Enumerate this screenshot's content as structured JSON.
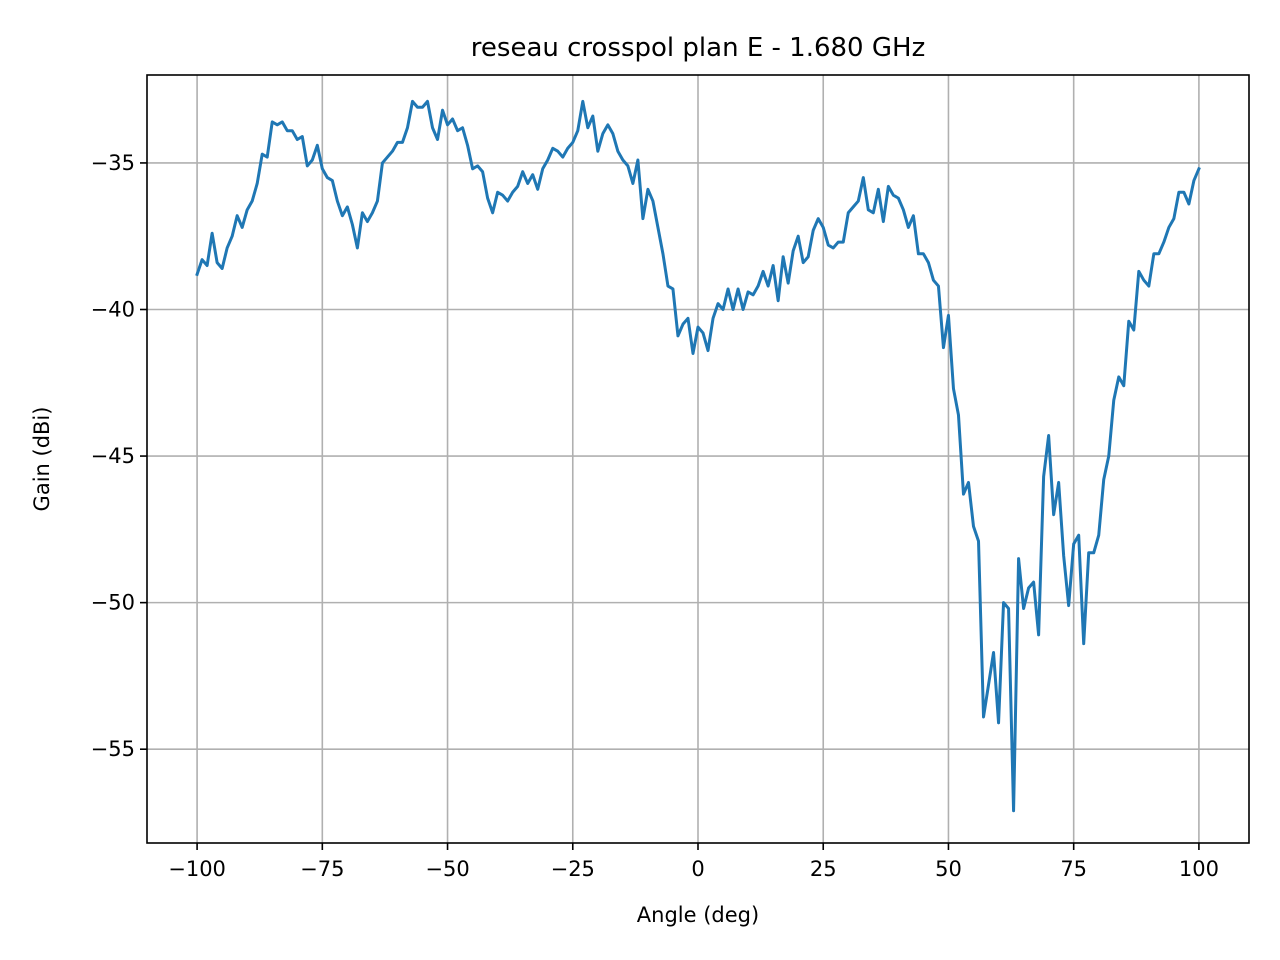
{
  "chart_data": {
    "type": "line",
    "title": "reseau crosspol plan E - 1.680 GHz",
    "xlabel": "Angle (deg)",
    "ylabel": "Gain (dBi)",
    "xlim": [
      -110,
      110
    ],
    "ylim": [
      -58.2,
      -32.0
    ],
    "xticks": [
      -100,
      -75,
      -50,
      -25,
      0,
      25,
      50,
      75,
      100
    ],
    "xtick_labels": [
      "−100",
      "−75",
      "−50",
      "−25",
      "0",
      "25",
      "50",
      "75",
      "100"
    ],
    "yticks": [
      -35,
      -40,
      -45,
      -50,
      -55
    ],
    "ytick_labels": [
      "−35",
      "−40",
      "−45",
      "−50",
      "−55"
    ],
    "grid": true,
    "legend": null,
    "series": [
      {
        "color": "#1f77b4",
        "x": [
          -100,
          -99,
          -98,
          -97,
          -96,
          -95,
          -94,
          -93,
          -92,
          -91,
          -90,
          -89,
          -88,
          -87,
          -86,
          -85,
          -84,
          -83,
          -82,
          -81,
          -80,
          -79,
          -78,
          -77,
          -76,
          -75,
          -74,
          -73,
          -72,
          -71,
          -70,
          -69,
          -68,
          -67,
          -66,
          -65,
          -64,
          -63,
          -62,
          -61,
          -60,
          -59,
          -58,
          -57,
          -56,
          -55,
          -54,
          -53,
          -52,
          -51,
          -50,
          -49,
          -48,
          -47,
          -46,
          -45,
          -44,
          -43,
          -42,
          -41,
          -40,
          -39,
          -38,
          -37,
          -36,
          -35,
          -34,
          -33,
          -32,
          -31,
          -30,
          -29,
          -28,
          -27,
          -26,
          -25,
          -24,
          -23,
          -22,
          -21,
          -20,
          -19,
          -18,
          -17,
          -16,
          -15,
          -14,
          -13,
          -12,
          -11,
          -10,
          -9,
          -8,
          -7,
          -6,
          -5,
          -4,
          -3,
          -2,
          -1,
          0,
          1,
          2,
          3,
          4,
          5,
          6,
          7,
          8,
          9,
          10,
          11,
          12,
          13,
          14,
          15,
          16,
          17,
          18,
          19,
          20,
          21,
          22,
          23,
          24,
          25,
          26,
          27,
          28,
          29,
          30,
          31,
          32,
          33,
          34,
          35,
          36,
          37,
          38,
          39,
          40,
          41,
          42,
          43,
          44,
          45,
          46,
          47,
          48,
          49,
          50,
          51,
          52,
          53,
          54,
          55,
          56,
          57,
          58,
          59,
          60,
          61,
          62,
          63,
          64,
          65,
          66,
          67,
          68,
          69,
          70,
          71,
          72,
          73,
          74,
          75,
          76,
          77,
          78,
          79,
          80,
          81,
          82,
          83,
          84,
          85,
          86,
          87,
          88,
          89,
          90,
          91,
          92,
          93,
          94,
          95,
          96,
          97,
          98,
          99,
          100
        ],
        "values": [
          -38.8,
          -38.3,
          -38.5,
          -37.4,
          -38.4,
          -38.6,
          -37.9,
          -37.5,
          -36.8,
          -37.2,
          -36.6,
          -36.3,
          -35.7,
          -34.7,
          -34.8,
          -33.6,
          -33.7,
          -33.6,
          -33.9,
          -33.9,
          -34.2,
          -34.1,
          -35.1,
          -34.9,
          -34.4,
          -35.2,
          -35.5,
          -35.6,
          -36.3,
          -36.8,
          -36.5,
          -37.1,
          -37.9,
          -36.7,
          -37.0,
          -36.7,
          -36.3,
          -35.0,
          -34.8,
          -34.6,
          -34.3,
          -34.3,
          -33.8,
          -32.9,
          -33.1,
          -33.1,
          -32.9,
          -33.8,
          -34.2,
          -33.2,
          -33.7,
          -33.5,
          -33.9,
          -33.8,
          -34.4,
          -35.2,
          -35.1,
          -35.3,
          -36.2,
          -36.7,
          -36.0,
          -36.1,
          -36.3,
          -36.0,
          -35.8,
          -35.3,
          -35.7,
          -35.4,
          -35.9,
          -35.2,
          -34.9,
          -34.5,
          -34.6,
          -34.8,
          -34.5,
          -34.3,
          -33.9,
          -32.9,
          -33.8,
          -33.4,
          -34.6,
          -34.0,
          -33.7,
          -34.0,
          -34.6,
          -34.9,
          -35.1,
          -35.7,
          -34.9,
          -36.9,
          -35.9,
          -36.3,
          -37.2,
          -38.1,
          -39.2,
          -39.3,
          -40.9,
          -40.5,
          -40.3,
          -41.5,
          -40.6,
          -40.8,
          -41.4,
          -40.3,
          -39.8,
          -40.0,
          -39.3,
          -40.0,
          -39.3,
          -40.0,
          -39.4,
          -39.5,
          -39.2,
          -38.7,
          -39.2,
          -38.5,
          -39.7,
          -38.2,
          -39.1,
          -38.0,
          -37.5,
          -38.4,
          -38.2,
          -37.3,
          -36.9,
          -37.2,
          -37.8,
          -37.9,
          -37.7,
          -37.7,
          -36.7,
          -36.5,
          -36.3,
          -35.5,
          -36.6,
          -36.7,
          -35.9,
          -37.0,
          -35.8,
          -36.1,
          -36.2,
          -36.6,
          -37.2,
          -36.8,
          -38.1,
          -38.1,
          -38.4,
          -39.0,
          -39.2,
          -41.3,
          -40.2,
          -42.7,
          -43.6,
          -46.3,
          -45.9,
          -47.4,
          -47.9,
          -53.9,
          -52.8,
          -51.7,
          -54.1,
          -50.0,
          -50.2,
          -57.1,
          -48.5,
          -50.2,
          -49.5,
          -49.3,
          -51.1,
          -45.7,
          -44.3,
          -47.0,
          -45.9,
          -48.4,
          -50.1,
          -48.0,
          -47.7,
          -51.4,
          -48.3,
          -48.3,
          -47.7,
          -45.8,
          -45.0,
          -43.1,
          -42.3,
          -42.6,
          -40.4,
          -40.7,
          -38.7,
          -39.0,
          -39.2,
          -38.1,
          -38.1,
          -37.7,
          -37.2,
          -36.9,
          -36.0,
          -36.0,
          -36.4,
          -35.6,
          -35.2
        ]
      }
    ]
  }
}
